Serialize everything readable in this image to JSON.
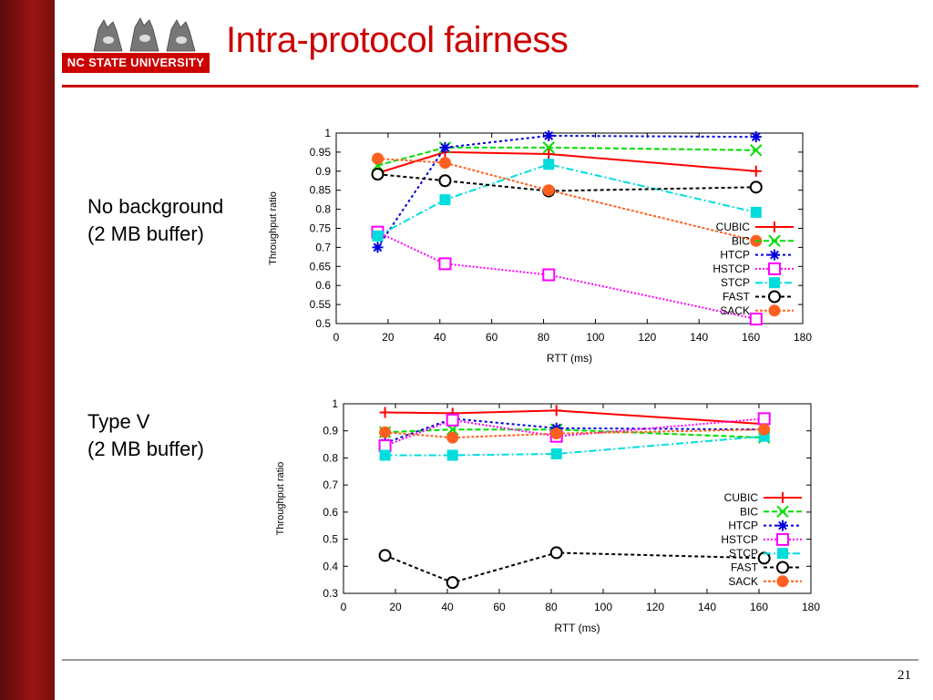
{
  "slide": {
    "title": "Intra-protocol fairness",
    "logo_text": "NC STATE UNIVERSITY",
    "page_number": "21",
    "captions": [
      {
        "line1": "No background",
        "line2": "(2 MB buffer)"
      },
      {
        "line1": "Type V",
        "line2": "(2 MB buffer)"
      }
    ],
    "accent_color": "#cc0000"
  },
  "chart_data": [
    {
      "type": "line",
      "xlabel": "RTT (ms)",
      "ylabel": "Throughput ratio",
      "xlim": [
        0,
        180
      ],
      "ylim": [
        0.5,
        1
      ],
      "xticks": [
        0,
        20,
        40,
        60,
        80,
        100,
        120,
        140,
        160,
        180
      ],
      "yticks": [
        0.5,
        0.55,
        0.6,
        0.65,
        0.7,
        0.75,
        0.8,
        0.85,
        0.9,
        0.95,
        1
      ],
      "grid": false,
      "legend_position": "bottom-right",
      "x": [
        16,
        42,
        82,
        162
      ],
      "series": [
        {
          "name": "CUBIC",
          "values": [
            0.895,
            0.95,
            0.945,
            0.9
          ],
          "color": "#ff0000",
          "marker": "plus"
        },
        {
          "name": "BIC",
          "values": [
            0.915,
            0.962,
            0.962,
            0.955
          ],
          "color": "#00dd00",
          "marker": "x"
        },
        {
          "name": "HTCP",
          "values": [
            0.7,
            0.962,
            0.993,
            0.99
          ],
          "color": "#0000dd",
          "marker": "star"
        },
        {
          "name": "HSTCP",
          "values": [
            0.74,
            0.657,
            0.628,
            0.512
          ],
          "color": "#ff00ff",
          "marker": "square"
        },
        {
          "name": "STCP",
          "values": [
            0.73,
            0.825,
            0.918,
            0.792
          ],
          "color": "#00dddd",
          "marker": "filled-square"
        },
        {
          "name": "FAST",
          "values": [
            0.892,
            0.875,
            0.848,
            0.858
          ],
          "color": "#000000",
          "marker": "circle"
        },
        {
          "name": "SACK",
          "values": [
            0.933,
            0.922,
            0.85,
            0.717
          ],
          "color": "#ff6020",
          "marker": "filled-circle"
        }
      ]
    },
    {
      "type": "line",
      "xlabel": "RTT (ms)",
      "ylabel": "Throughput ratio",
      "xlim": [
        0,
        180
      ],
      "ylim": [
        0.3,
        1
      ],
      "xticks": [
        0,
        20,
        40,
        60,
        80,
        100,
        120,
        140,
        160,
        180
      ],
      "yticks": [
        0.3,
        0.4,
        0.5,
        0.6,
        0.7,
        0.8,
        0.9,
        1
      ],
      "grid": false,
      "legend_position": "bottom-right",
      "x": [
        16,
        42,
        82,
        162
      ],
      "series": [
        {
          "name": "CUBIC",
          "values": [
            0.968,
            0.965,
            0.975,
            0.925
          ],
          "color": "#ff0000",
          "marker": "plus"
        },
        {
          "name": "BIC",
          "values": [
            0.895,
            0.905,
            0.905,
            0.875
          ],
          "color": "#00dd00",
          "marker": "x"
        },
        {
          "name": "HTCP",
          "values": [
            0.855,
            0.945,
            0.91,
            0.905
          ],
          "color": "#0000dd",
          "marker": "star"
        },
        {
          "name": "HSTCP",
          "values": [
            0.845,
            0.94,
            0.88,
            0.945
          ],
          "color": "#ff00ff",
          "marker": "square"
        },
        {
          "name": "STCP",
          "values": [
            0.81,
            0.81,
            0.815,
            0.88
          ],
          "color": "#00dddd",
          "marker": "filled-square"
        },
        {
          "name": "FAST",
          "values": [
            0.44,
            0.34,
            0.45,
            0.43
          ],
          "color": "#000000",
          "marker": "circle"
        },
        {
          "name": "SACK",
          "values": [
            0.895,
            0.875,
            0.89,
            0.905
          ],
          "color": "#ff6020",
          "marker": "filled-circle"
        }
      ]
    }
  ]
}
